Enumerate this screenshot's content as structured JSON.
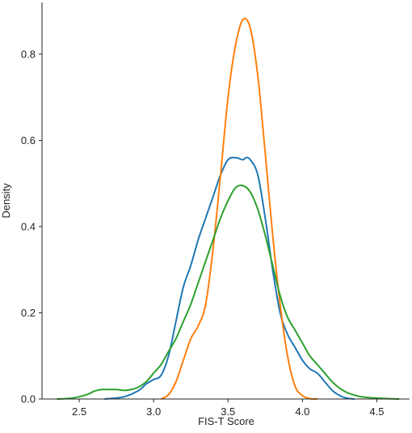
{
  "chart_data": {
    "type": "line",
    "title": "",
    "xlabel": "FIS-T Score",
    "ylabel": "Density",
    "xlim": [
      2.25,
      4.72
    ],
    "ylim": [
      0,
      0.92
    ],
    "xticks": [
      2.5,
      3.0,
      3.5,
      4.0,
      4.5
    ],
    "xtick_labels": [
      "2.5",
      "3.0",
      "3.5",
      "4.0",
      "4.5"
    ],
    "yticks": [
      0,
      0.2,
      0.4,
      0.6,
      0.8
    ],
    "ytick_labels": [
      "0.0",
      "0.2",
      "0.4",
      "0.6",
      "0.8"
    ],
    "grid": false,
    "legend": "none",
    "series": [
      {
        "color": "#1f77b4",
        "x": [
          2.67,
          2.8,
          2.9,
          2.95,
          3.0,
          3.05,
          3.1,
          3.15,
          3.2,
          3.25,
          3.3,
          3.35,
          3.4,
          3.45,
          3.5,
          3.55,
          3.6,
          3.62,
          3.65,
          3.7,
          3.75,
          3.8,
          3.85,
          3.9,
          3.95,
          4.0,
          4.05,
          4.1,
          4.15,
          4.2,
          4.25,
          4.3,
          4.35
        ],
        "y": [
          0.0,
          0.005,
          0.02,
          0.035,
          0.045,
          0.055,
          0.1,
          0.18,
          0.26,
          0.31,
          0.37,
          0.42,
          0.47,
          0.52,
          0.555,
          0.56,
          0.555,
          0.56,
          0.555,
          0.52,
          0.42,
          0.3,
          0.2,
          0.15,
          0.12,
          0.09,
          0.07,
          0.06,
          0.04,
          0.02,
          0.008,
          0.002,
          0.0
        ]
      },
      {
        "color": "#ff7f0e",
        "x": [
          3.05,
          3.1,
          3.15,
          3.2,
          3.25,
          3.3,
          3.35,
          3.4,
          3.45,
          3.5,
          3.55,
          3.6,
          3.65,
          3.7,
          3.75,
          3.8,
          3.85,
          3.9,
          3.95,
          4.0,
          4.05,
          4.1
        ],
        "y": [
          0.0,
          0.01,
          0.04,
          0.09,
          0.14,
          0.17,
          0.22,
          0.35,
          0.52,
          0.7,
          0.82,
          0.88,
          0.86,
          0.75,
          0.57,
          0.38,
          0.22,
          0.1,
          0.03,
          0.008,
          0.001,
          0.0
        ]
      },
      {
        "color": "#2ca02c",
        "x": [
          2.35,
          2.45,
          2.55,
          2.6,
          2.65,
          2.7,
          2.75,
          2.8,
          2.85,
          2.9,
          2.95,
          3.0,
          3.05,
          3.1,
          3.15,
          3.2,
          3.25,
          3.3,
          3.35,
          3.4,
          3.45,
          3.5,
          3.55,
          3.6,
          3.65,
          3.7,
          3.75,
          3.8,
          3.85,
          3.9,
          3.95,
          4.0,
          4.05,
          4.1,
          4.15,
          4.2,
          4.25,
          4.3,
          4.35,
          4.4,
          4.5,
          4.6,
          4.65
        ],
        "y": [
          0.0,
          0.002,
          0.01,
          0.018,
          0.022,
          0.022,
          0.022,
          0.02,
          0.022,
          0.028,
          0.04,
          0.06,
          0.08,
          0.11,
          0.14,
          0.18,
          0.22,
          0.27,
          0.32,
          0.37,
          0.42,
          0.46,
          0.49,
          0.495,
          0.48,
          0.44,
          0.38,
          0.31,
          0.24,
          0.19,
          0.16,
          0.13,
          0.1,
          0.08,
          0.06,
          0.04,
          0.025,
          0.015,
          0.009,
          0.005,
          0.002,
          0.0005,
          0.0
        ]
      }
    ]
  }
}
